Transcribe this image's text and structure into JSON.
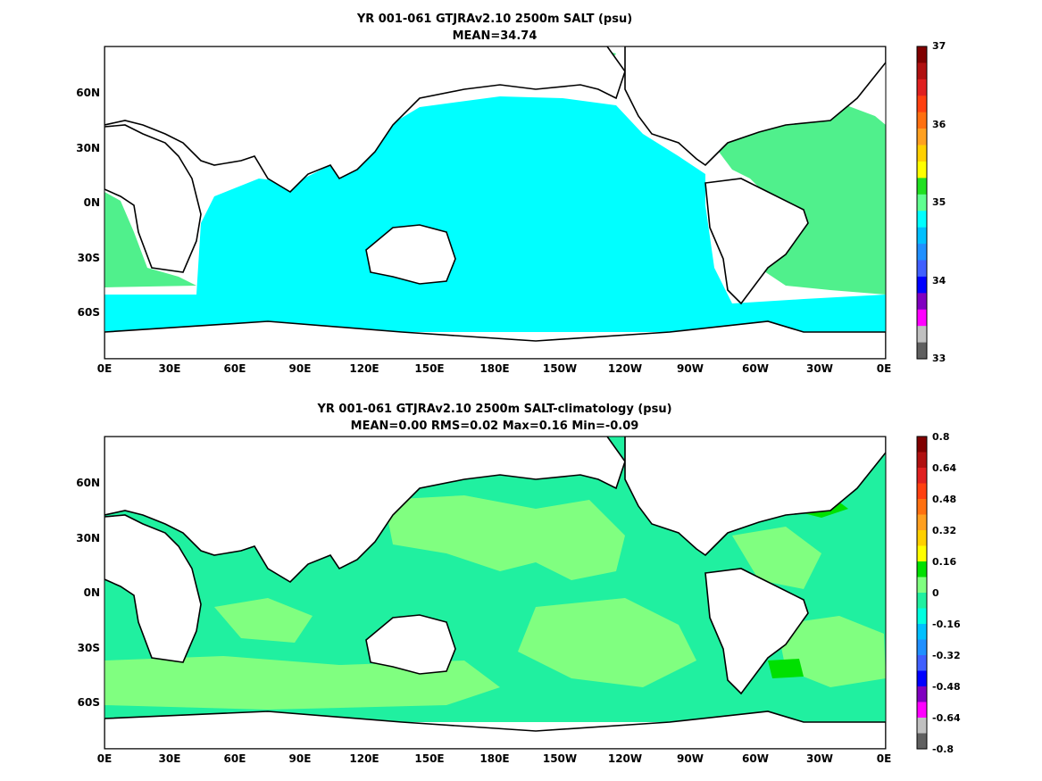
{
  "panels": [
    {
      "title_line1": "YR 001-061 GTJRAv2.10 2500m SALT (psu)",
      "title_line2": "MEAN=34.74",
      "x_ticks": [
        "0E",
        "30E",
        "60E",
        "90E",
        "120E",
        "150E",
        "180E",
        "150W",
        "120W",
        "90W",
        "60W",
        "30W",
        "0E"
      ],
      "y_ticks": [
        "60N",
        "30N",
        "0N",
        "30S",
        "60S"
      ],
      "colorbar": {
        "labels": [
          "37",
          "36",
          "35",
          "34",
          "33"
        ],
        "colors_top_to_bottom": [
          "#800000",
          "#b01010",
          "#e02020",
          "#ff4010",
          "#ff7010",
          "#ffa020",
          "#ffd000",
          "#ffff00",
          "#20e020",
          "#60ff90",
          "#00ffff",
          "#00c0ff",
          "#2090ff",
          "#4060ff",
          "#0000ff",
          "#8000c0",
          "#ff00ff",
          "#c0c0c0",
          "#606060"
        ]
      }
    },
    {
      "title_line1": "YR 001-061 GTJRAv2.10 2500m SALT-climatology (psu)",
      "title_line2": "MEAN=0.00   RMS=0.02   Max=0.16   Min=-0.09",
      "x_ticks": [
        "0E",
        "30E",
        "60E",
        "90E",
        "120E",
        "150E",
        "180E",
        "150W",
        "120W",
        "90W",
        "60W",
        "30W",
        "0E"
      ],
      "y_ticks": [
        "60N",
        "30N",
        "0N",
        "30S",
        "60S"
      ],
      "colorbar": {
        "labels": [
          "0.8",
          "0.64",
          "0.48",
          "0.32",
          "0.16",
          "0",
          "-0.16",
          "-0.32",
          "-0.48",
          "-0.64",
          "-0.8"
        ],
        "colors_top_to_bottom": [
          "#800000",
          "#b01010",
          "#e02020",
          "#ff4010",
          "#ff7010",
          "#ffa020",
          "#ffd000",
          "#ffff00",
          "#00e000",
          "#80ff80",
          "#20f0a0",
          "#00ffe0",
          "#00c0ff",
          "#2090ff",
          "#4060ff",
          "#0000ff",
          "#8000c0",
          "#ff00ff",
          "#c0c0c0",
          "#606060"
        ]
      }
    }
  ],
  "colors": {
    "land": "#ffffff",
    "coast": "#000000",
    "salt_pacific_indian": "#00ffff",
    "salt_atlantic": "#50f08c",
    "anom_base": "#20f0a0",
    "anom_light": "#80ff80",
    "anom_bright": "#00e000"
  }
}
